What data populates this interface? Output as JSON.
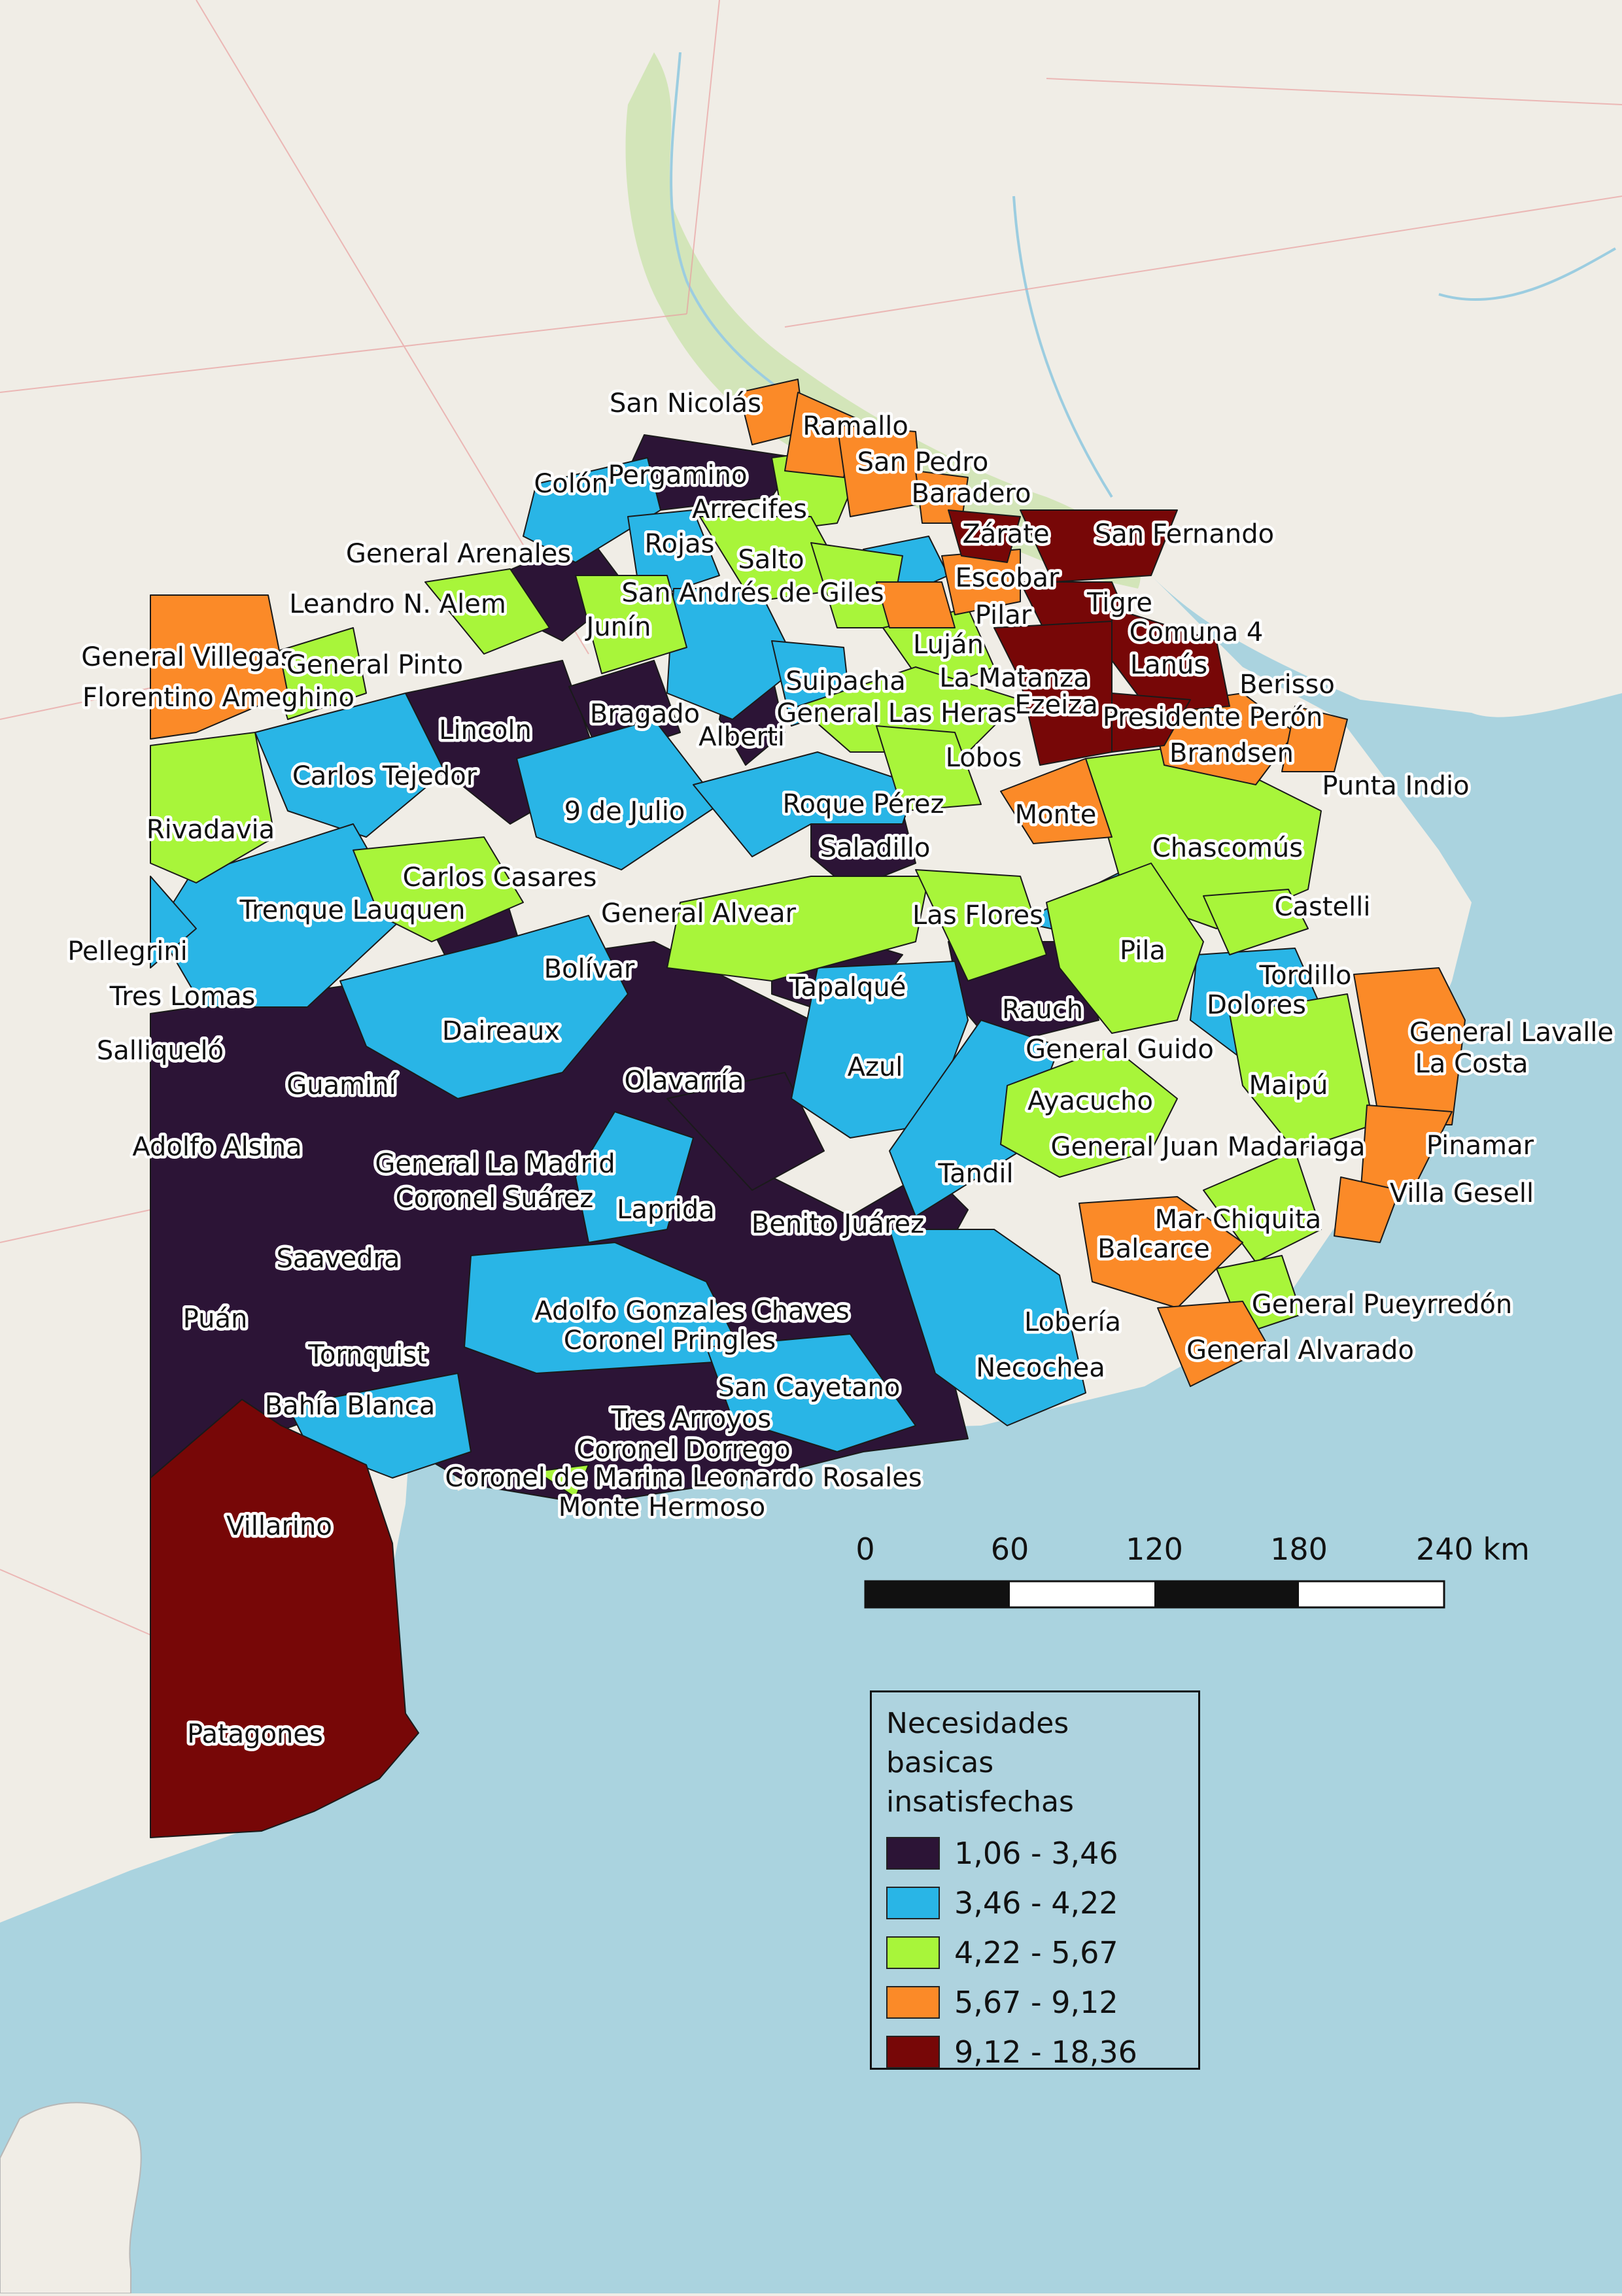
{
  "map": {
    "legend": {
      "title_line1": "Necesidades basicas",
      "title_line2": "insatisfechas",
      "classes": [
        {
          "label": "1,06 - 3,46",
          "color": "#2c1436"
        },
        {
          "label": "3,46 - 4,22",
          "color": "#29b5e6"
        },
        {
          "label": "4,22 - 5,67",
          "color": "#a8f53a"
        },
        {
          "label": "5,67 - 9,12",
          "color": "#fb8a28"
        },
        {
          "label": "9,12 - 18,36",
          "color": "#770707"
        }
      ]
    },
    "scale_bar": {
      "ticks": [
        "0",
        "60",
        "120",
        "180",
        "240 km"
      ]
    },
    "colors": {
      "sea": "#aad3df",
      "land": "#f0ede6",
      "delta": "#cfe3b4",
      "border": "#1a1a1a"
    },
    "districts": [
      {
        "name": "San Nicolás",
        "class": 3
      },
      {
        "name": "Ramallo",
        "class": 3
      },
      {
        "name": "San Pedro",
        "class": 3
      },
      {
        "name": "Colón",
        "class": 1
      },
      {
        "name": "Pergamino",
        "class": 0
      },
      {
        "name": "Baradero",
        "class": 3
      },
      {
        "name": "Arrecifes",
        "class": 2
      },
      {
        "name": "Zárate",
        "class": 4
      },
      {
        "name": "San Fernando",
        "class": 4
      },
      {
        "name": "General Arenales",
        "class": 0
      },
      {
        "name": "Rojas",
        "class": 1
      },
      {
        "name": "Salto",
        "class": 2
      },
      {
        "name": "Escobar",
        "class": 3
      },
      {
        "name": "Leandro N. Alem",
        "class": 2
      },
      {
        "name": "San Andrés de Giles",
        "class": 2
      },
      {
        "name": "Tigre",
        "class": 4
      },
      {
        "name": "Pilar",
        "class": 3
      },
      {
        "name": "Junín",
        "class": 2
      },
      {
        "name": "Comuna 4",
        "class": 0
      },
      {
        "name": "Luján",
        "class": 2
      },
      {
        "name": "General Villegas",
        "class": 3
      },
      {
        "name": "General Pinto",
        "class": 2
      },
      {
        "name": "La Matanza",
        "class": 4
      },
      {
        "name": "Lanús",
        "class": 4
      },
      {
        "name": "Berisso",
        "class": 4
      },
      {
        "name": "Suipacha",
        "class": 1
      },
      {
        "name": "Florentino Ameghino",
        "class": 3
      },
      {
        "name": "Ezeiza",
        "class": 4
      },
      {
        "name": "General Las Heras",
        "class": 2
      },
      {
        "name": "Presidente Perón",
        "class": 4
      },
      {
        "name": "Bragado",
        "class": 0
      },
      {
        "name": "Lincoln",
        "class": 0
      },
      {
        "name": "Alberti",
        "class": 0
      },
      {
        "name": "Brandsen",
        "class": 3
      },
      {
        "name": "Lobos",
        "class": 2
      },
      {
        "name": "Carlos Tejedor",
        "class": 1
      },
      {
        "name": "Punta Indio",
        "class": 3
      },
      {
        "name": "Roque Pérez",
        "class": 1
      },
      {
        "name": "9 de Julio",
        "class": 1
      },
      {
        "name": "Monte",
        "class": 3
      },
      {
        "name": "Rivadavia",
        "class": 2
      },
      {
        "name": "Saladillo",
        "class": 0
      },
      {
        "name": "Chascomús",
        "class": 2
      },
      {
        "name": "Carlos Casares",
        "class": 2
      },
      {
        "name": "Castelli",
        "class": 2
      },
      {
        "name": "Trenque Lauquen",
        "class": 1
      },
      {
        "name": "General Alvear",
        "class": 2
      },
      {
        "name": "Las Flores",
        "class": 2
      },
      {
        "name": "Pellegrini",
        "class": 1
      },
      {
        "name": "Pila",
        "class": 2
      },
      {
        "name": "Tordillo",
        "class": 1
      },
      {
        "name": "Bolívar",
        "class": 1
      },
      {
        "name": "Tapalqué",
        "class": 0
      },
      {
        "name": "Tres Lomas",
        "class": 1
      },
      {
        "name": "Rauch",
        "class": 0
      },
      {
        "name": "Dolores",
        "class": 1
      },
      {
        "name": "Daireaux",
        "class": 1
      },
      {
        "name": "General Lavalle",
        "class": 3
      },
      {
        "name": "General Guido",
        "class": 2
      },
      {
        "name": "Salliqueló",
        "class": 0
      },
      {
        "name": "La Costa",
        "class": 3
      },
      {
        "name": "Azul",
        "class": 1
      },
      {
        "name": "Olavarría",
        "class": 0
      },
      {
        "name": "Guaminí",
        "class": 0
      },
      {
        "name": "Maipú",
        "class": 2
      },
      {
        "name": "Ayacucho",
        "class": 2
      },
      {
        "name": "Adolfo Alsina",
        "class": 0
      },
      {
        "name": "General Juan Madariaga",
        "class": 3
      },
      {
        "name": "Pinamar",
        "class": 3
      },
      {
        "name": "General La Madrid",
        "class": 0
      },
      {
        "name": "Tandil",
        "class": 1
      },
      {
        "name": "Villa Gesell",
        "class": 3
      },
      {
        "name": "Coronel Suárez",
        "class": 0
      },
      {
        "name": "Laprida",
        "class": 1
      },
      {
        "name": "Mar Chiquita",
        "class": 2
      },
      {
        "name": "Benito Juárez",
        "class": 0
      },
      {
        "name": "Balcarce",
        "class": 3
      },
      {
        "name": "Saavedra",
        "class": 0
      },
      {
        "name": "General Pueyrredón",
        "class": 2
      },
      {
        "name": "Adolfo Gonzales Chaves",
        "class": 1
      },
      {
        "name": "Puán",
        "class": 0
      },
      {
        "name": "Lobería",
        "class": 1
      },
      {
        "name": "Coronel Pringles",
        "class": 0
      },
      {
        "name": "General Alvarado",
        "class": 3
      },
      {
        "name": "Tornquist",
        "class": 0
      },
      {
        "name": "Necochea",
        "class": 1
      },
      {
        "name": "San Cayetano",
        "class": 0
      },
      {
        "name": "Bahía Blanca",
        "class": 1
      },
      {
        "name": "Tres Arroyos",
        "class": 0
      },
      {
        "name": "Coronel Dorrego",
        "class": 0
      },
      {
        "name": "Coronel de Marina Leonardo Rosales",
        "class": 0
      },
      {
        "name": "Monte Hermoso",
        "class": 2
      },
      {
        "name": "Villarino",
        "class": 4
      },
      {
        "name": "Patagones",
        "class": 4
      }
    ]
  }
}
